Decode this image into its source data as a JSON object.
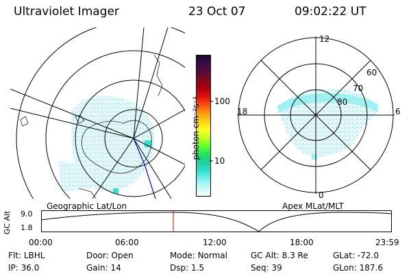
{
  "header": {
    "instrument": "Ultraviolet Imager",
    "date": "23 Oct 07",
    "time": "09:02:22 UT"
  },
  "geo_panel": {
    "label": "Geographic Lat/Lon"
  },
  "apex_panel": {
    "label": "Apex MLat/MLT",
    "mlt_labels": [
      "12",
      "18",
      "6",
      "0"
    ],
    "lat_labels": [
      "60",
      "70",
      "80"
    ]
  },
  "colorbar": {
    "unit_label": "photon cm⁻²s⁻¹",
    "tick_labels": [
      "100",
      "10"
    ],
    "colors": [
      "#1a0a33",
      "#3a0a4a",
      "#5a0a3a",
      "#800a1a",
      "#b00010",
      "#e01010",
      "#ff5010",
      "#ff9a10",
      "#ffd010",
      "#ffff20",
      "#c0ff20",
      "#60ff30",
      "#20e060",
      "#20d0a0",
      "#30e0d0",
      "#80f0f0",
      "#c8f8f8",
      "#f0ffff"
    ]
  },
  "altitude_plot": {
    "ylabel": "GC Alt",
    "y_ticks": [
      "9.0",
      "1.8"
    ],
    "x_ticks": [
      "00:00",
      "06:00",
      "12:00",
      "18:00",
      "23:59"
    ]
  },
  "info": {
    "row1": [
      {
        "key": "Flt:",
        "value": "LBHL"
      },
      {
        "key": "Door:",
        "value": "Open"
      },
      {
        "key": "Mode:",
        "value": "Normal"
      },
      {
        "key": "GC Alt:",
        "value": "8.3 Re"
      },
      {
        "key": "GLat:",
        "value": "-72.0"
      }
    ],
    "row2": [
      {
        "key": "IP:",
        "value": "36.0"
      },
      {
        "key": "Gain:",
        "value": "14"
      },
      {
        "key": "Dsp:",
        "value": "1.5"
      },
      {
        "key": "Seq:",
        "value": "39"
      },
      {
        "key": "GLon:",
        "value": "187.6"
      }
    ]
  }
}
